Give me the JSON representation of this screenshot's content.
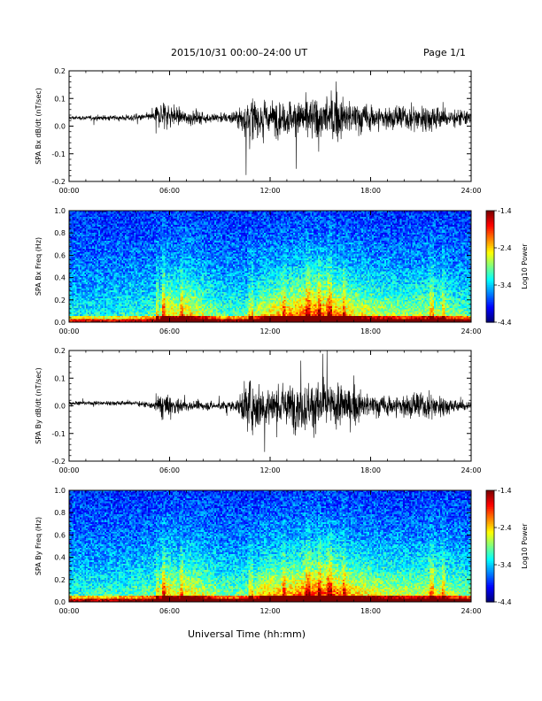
{
  "header": {
    "title": "2015/10/31   00:00–24:00 UT",
    "page": "Page 1/1"
  },
  "xlabel": "Universal Time (hh:mm)",
  "chart_data": [
    {
      "type": "line",
      "ylabel": "SPA Bx dB/dt (nT/sec)",
      "xlim": [
        0,
        24
      ],
      "ylim": [
        -0.2,
        0.2
      ],
      "yticks": [
        "0.2",
        "0.1",
        "0.0",
        "-0.1",
        "-0.2"
      ],
      "xticks": [
        "00:00",
        "06:00",
        "12:00",
        "18:00",
        "24:00"
      ],
      "series": [
        {
          "x_hours": [
            0,
            1,
            2,
            3,
            4,
            5,
            5.5,
            6,
            7,
            8,
            9,
            10,
            10.8,
            11,
            12,
            13,
            14,
            15,
            16,
            17,
            18,
            19,
            20,
            21,
            22,
            23,
            24
          ],
          "baseline": [
            0.03,
            0.03,
            0.03,
            0.03,
            0.03,
            0.035,
            0.04,
            0.04,
            0.03,
            0.03,
            0.03,
            0.03,
            0.03,
            0.03,
            0.03,
            0.03,
            0.03,
            0.03,
            0.03,
            0.03,
            0.03,
            0.03,
            0.03,
            0.03,
            0.03,
            0.03,
            0.03
          ],
          "amplitude": [
            0.012,
            0.012,
            0.015,
            0.015,
            0.02,
            0.02,
            0.1,
            0.07,
            0.04,
            0.035,
            0.03,
            0.04,
            0.15,
            0.12,
            0.1,
            0.1,
            0.11,
            0.12,
            0.12,
            0.1,
            0.08,
            0.07,
            0.07,
            0.08,
            0.08,
            0.05,
            0.05
          ]
        }
      ]
    },
    {
      "type": "heatmap",
      "ylabel": "SPA Bx Freq (Hz)",
      "xlim": [
        0,
        24
      ],
      "ylim": [
        0,
        1.0
      ],
      "yticks": [
        "1.0",
        "0.8",
        "0.6",
        "0.4",
        "0.2",
        "0.0"
      ],
      "xticks": [
        "00:00",
        "06:00",
        "12:00",
        "18:00",
        "24:00"
      ],
      "colorbar": {
        "label": "Log10 Power",
        "ticks": [
          "-1.4",
          "-2.4",
          "-3.4",
          "-4.4"
        ],
        "range": [
          -4.4,
          -1.4
        ]
      },
      "activity_hours": [
        0,
        2,
        4,
        5.3,
        5.6,
        6.5,
        7,
        9,
        10.8,
        11.5,
        13,
        14.5,
        15.5,
        17,
        18.5,
        20,
        22,
        23,
        24
      ],
      "activity_level": [
        0.15,
        0.15,
        0.2,
        0.25,
        0.6,
        0.45,
        0.55,
        0.25,
        0.25,
        0.5,
        0.6,
        0.75,
        0.7,
        0.5,
        0.4,
        0.35,
        0.4,
        0.3,
        0.25
      ]
    },
    {
      "type": "line",
      "ylabel": "SPA By dB/dt (nT/sec)",
      "xlim": [
        0,
        24
      ],
      "ylim": [
        -0.2,
        0.2
      ],
      "yticks": [
        "0.2",
        "0.1",
        "0.0",
        "-0.1",
        "-0.2"
      ],
      "xticks": [
        "00:00",
        "06:00",
        "12:00",
        "18:00",
        "24:00"
      ],
      "series": [
        {
          "x_hours": [
            0,
            1,
            2,
            3,
            4,
            5,
            5.5,
            6,
            7,
            8,
            9,
            10,
            10.8,
            11,
            12,
            13,
            14,
            15,
            16,
            17,
            18,
            19,
            20,
            21,
            22,
            23,
            24
          ],
          "baseline": [
            0.01,
            0.01,
            0.01,
            0.01,
            0.01,
            0.0,
            0.0,
            0.0,
            0.0,
            0.0,
            0.0,
            0.0,
            0.0,
            0.0,
            0.0,
            0.0,
            0.0,
            0.0,
            0.0,
            0.0,
            0.0,
            0.0,
            0.0,
            0.0,
            0.0,
            0.0,
            0.0
          ],
          "amplitude": [
            0.01,
            0.012,
            0.012,
            0.015,
            0.015,
            0.02,
            0.08,
            0.06,
            0.03,
            0.025,
            0.025,
            0.03,
            0.16,
            0.14,
            0.12,
            0.12,
            0.15,
            0.14,
            0.13,
            0.1,
            0.07,
            0.06,
            0.07,
            0.08,
            0.07,
            0.04,
            0.04
          ]
        }
      ]
    },
    {
      "type": "heatmap",
      "ylabel": "SPA By Freq (Hz)",
      "xlim": [
        0,
        24
      ],
      "ylim": [
        0,
        1.0
      ],
      "yticks": [
        "1.0",
        "0.8",
        "0.6",
        "0.4",
        "0.2",
        "0.0"
      ],
      "xticks": [
        "00:00",
        "06:00",
        "12:00",
        "18:00",
        "24:00"
      ],
      "colorbar": {
        "label": "Log10 Power",
        "ticks": [
          "-1.4",
          "-2.4",
          "-3.4",
          "-4.4"
        ],
        "range": [
          -4.4,
          -1.4
        ]
      },
      "activity_hours": [
        0,
        2,
        4,
        5.3,
        5.6,
        6.5,
        7,
        9,
        10.8,
        11.5,
        13,
        14.5,
        15.5,
        17,
        18.5,
        20,
        22,
        23,
        24
      ],
      "activity_level": [
        0.2,
        0.2,
        0.25,
        0.3,
        0.6,
        0.45,
        0.55,
        0.3,
        0.3,
        0.55,
        0.6,
        0.75,
        0.75,
        0.55,
        0.45,
        0.4,
        0.45,
        0.35,
        0.3
      ]
    }
  ]
}
